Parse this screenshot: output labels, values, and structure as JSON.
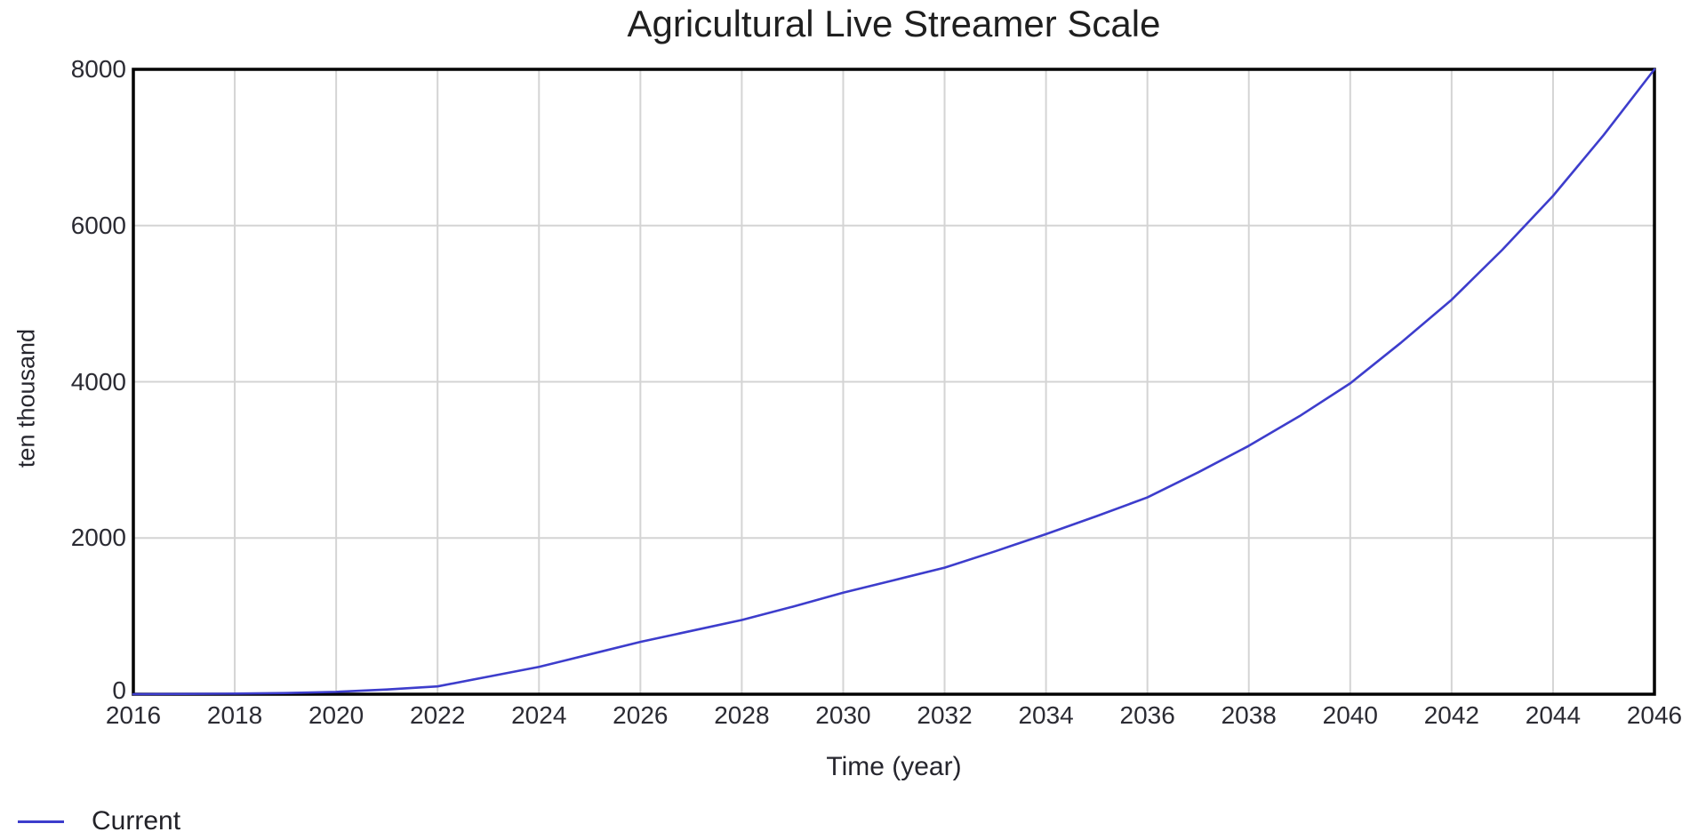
{
  "colors": {
    "line": "#3d3dcc",
    "grid": "#d4d4d4",
    "frame": "#000000",
    "text": "#2b2b33",
    "background": "#ffffff"
  },
  "chart_data": {
    "type": "line",
    "title": "Agricultural Live Streamer Scale",
    "xlabel": "Time (year)",
    "ylabel": "ten thousand",
    "xlim": [
      2016,
      2046
    ],
    "ylim": [
      0,
      8000
    ],
    "x_ticks": [
      2016,
      2018,
      2020,
      2022,
      2024,
      2026,
      2028,
      2030,
      2032,
      2034,
      2036,
      2038,
      2040,
      2042,
      2044,
      2046
    ],
    "y_ticks": [
      0,
      2000,
      4000,
      6000,
      8000
    ],
    "grid": true,
    "legend_position": "bottom-left",
    "series": [
      {
        "name": "Current",
        "color": "#3d3dcc",
        "x": [
          2016,
          2017,
          2018,
          2019,
          2020,
          2021,
          2022,
          2023,
          2024,
          2025,
          2026,
          2027,
          2028,
          2029,
          2030,
          2031,
          2032,
          2033,
          2034,
          2035,
          2036,
          2037,
          2038,
          2039,
          2040,
          2041,
          2042,
          2043,
          2044,
          2045,
          2046
        ],
        "y": [
          1,
          3,
          8,
          15,
          30,
          60,
          100,
          225,
          350,
          510,
          670,
          810,
          950,
          1120,
          1300,
          1460,
          1620,
          1830,
          2050,
          2280,
          2520,
          2840,
          3180,
          3560,
          3980,
          4500,
          5050,
          5690,
          6380,
          7160,
          8000
        ]
      }
    ]
  }
}
